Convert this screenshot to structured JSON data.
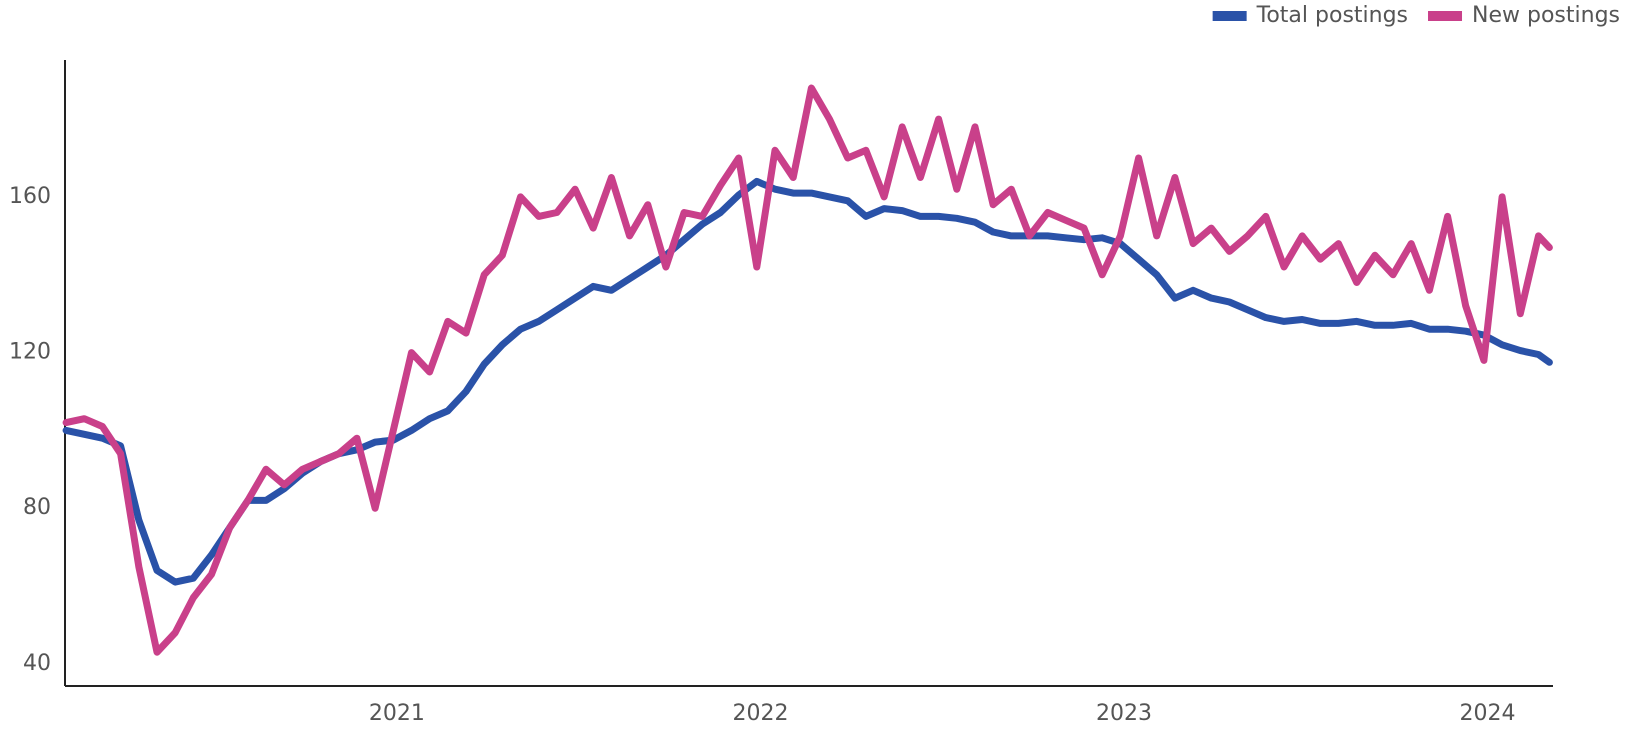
{
  "chart_data": {
    "type": "line",
    "x": [
      2020.09,
      2020.14,
      2020.19,
      2020.24,
      2020.29,
      2020.34,
      2020.39,
      2020.44,
      2020.49,
      2020.54,
      2020.59,
      2020.64,
      2020.69,
      2020.74,
      2020.79,
      2020.84,
      2020.89,
      2020.94,
      2020.99,
      2021.04,
      2021.09,
      2021.14,
      2021.19,
      2021.24,
      2021.29,
      2021.34,
      2021.39,
      2021.44,
      2021.49,
      2021.54,
      2021.59,
      2021.64,
      2021.69,
      2021.74,
      2021.79,
      2021.84,
      2021.89,
      2021.94,
      2021.99,
      2022.04,
      2022.09,
      2022.14,
      2022.19,
      2022.24,
      2022.29,
      2022.34,
      2022.39,
      2022.44,
      2022.49,
      2022.54,
      2022.59,
      2022.64,
      2022.69,
      2022.74,
      2022.79,
      2022.84,
      2022.89,
      2022.94,
      2022.99,
      2023.04,
      2023.09,
      2023.14,
      2023.19,
      2023.24,
      2023.29,
      2023.34,
      2023.39,
      2023.44,
      2023.49,
      2023.54,
      2023.59,
      2023.64,
      2023.69,
      2023.74,
      2023.79,
      2023.84,
      2023.89,
      2023.94,
      2023.99,
      2024.04,
      2024.09,
      2024.14,
      2024.17
    ],
    "series": [
      {
        "name": "Total postings",
        "color": "#2a52a8",
        "values": [
          100,
          99,
          98,
          96,
          77,
          64,
          61,
          62,
          68,
          75,
          82,
          82,
          85,
          89,
          92,
          94,
          95,
          97,
          97.5,
          100,
          103,
          105,
          110,
          117,
          122,
          126,
          128,
          131,
          134,
          137,
          136,
          139,
          142,
          145,
          149,
          153,
          156,
          160.5,
          164,
          162,
          161,
          161,
          160,
          159,
          155,
          157,
          156.5,
          155,
          155,
          154.5,
          153.5,
          151,
          150,
          150,
          150,
          149.5,
          149,
          149.5,
          148,
          144,
          140,
          134,
          136,
          134,
          133,
          131,
          129,
          128,
          128.5,
          127.5,
          127.5,
          128,
          127,
          127,
          127.5,
          126,
          126,
          125.5,
          124.5,
          122,
          120.5,
          119.5,
          117.5
        ]
      },
      {
        "name": "New postings",
        "color": "#c9408a",
        "values": [
          102,
          103,
          101,
          94,
          65,
          43,
          48,
          57,
          63,
          75,
          82,
          90,
          86,
          90,
          92,
          94,
          98,
          80,
          100,
          120,
          115,
          128,
          125,
          140,
          145,
          160,
          155,
          156,
          162,
          152,
          165,
          150,
          158,
          142,
          156,
          155,
          163,
          170,
          142,
          172,
          165,
          188,
          180,
          170,
          172,
          160,
          178,
          165,
          180,
          162,
          178,
          158,
          162,
          150,
          156,
          154,
          152,
          140,
          150,
          170,
          150,
          165,
          148,
          152,
          146,
          150,
          155,
          142,
          150,
          144,
          148,
          138,
          145,
          140,
          148,
          136,
          155,
          132,
          118,
          160,
          130,
          150,
          147
        ]
      }
    ],
    "xlim": [
      2020.087,
      2024.18
    ],
    "xticks": [
      2021,
      2022,
      2023,
      2024
    ],
    "ylim": [
      34.3,
      195.2
    ],
    "yticks": [
      40,
      80,
      120,
      160
    ],
    "grid": false,
    "legend": "top-right"
  }
}
